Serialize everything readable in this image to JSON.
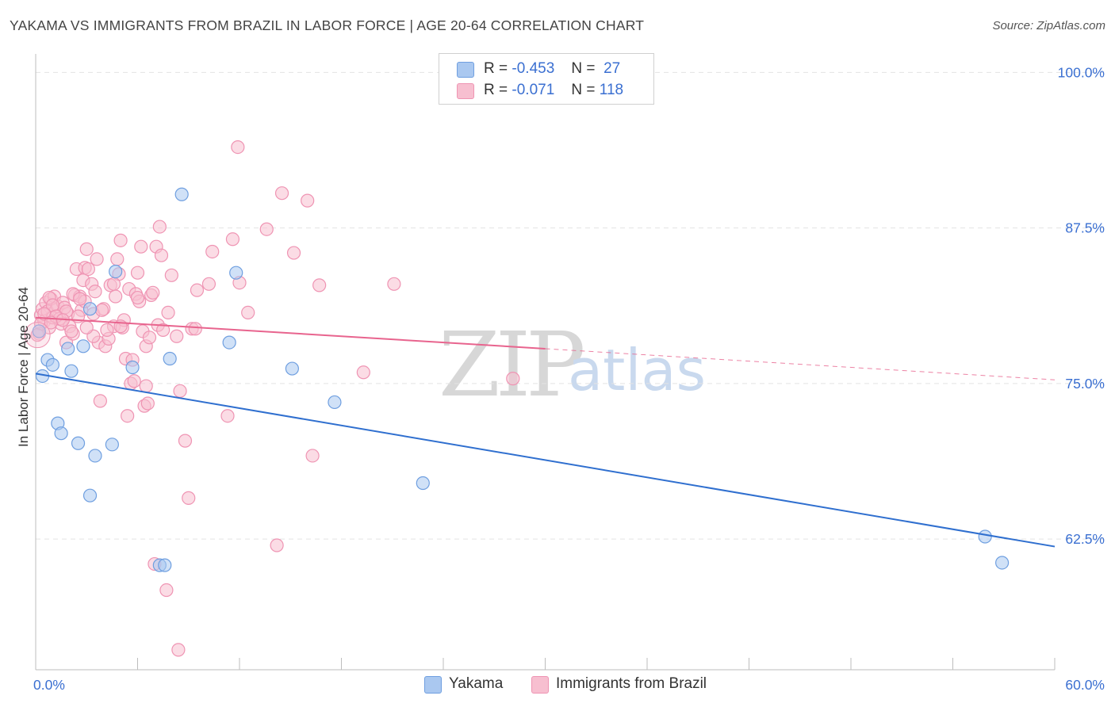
{
  "title": "YAKAMA VS IMMIGRANTS FROM BRAZIL IN LABOR FORCE | AGE 20-64 CORRELATION CHART",
  "source": "Source: ZipAtlas.com",
  "watermark": {
    "zip": "ZIP",
    "atlas": "atlas"
  },
  "legend": {
    "yakama": {
      "r_label": "R =",
      "r_value": "-0.453",
      "n_label": "N =",
      "n_value": "27"
    },
    "brazil": {
      "r_label": "R =",
      "r_value": "-0.071",
      "n_label": "N =",
      "n_value": "118"
    }
  },
  "colors": {
    "yakama_fill": "#aac8f0",
    "yakama_stroke": "#6f9fe0",
    "yakama_line": "#2f6fcf",
    "brazil_fill": "#f7bfd0",
    "brazil_stroke": "#ef94b3",
    "brazil_line": "#e8648e",
    "grid": "#e3e3e3",
    "tick_label": "#3a6fd1"
  },
  "chart_data": {
    "type": "scatter",
    "title": "YAKAMA VS IMMIGRANTS FROM BRAZIL IN LABOR FORCE | AGE 20-64 CORRELATION CHART",
    "xlabel": "",
    "ylabel": "In Labor Force | Age 20-64",
    "xlim": [
      0,
      60
    ],
    "ylim": [
      52,
      102
    ],
    "x_tick_labels": [
      {
        "value": 0,
        "label": "0.0%"
      },
      {
        "value": 60,
        "label": "60.0%"
      }
    ],
    "y_ticks": [
      {
        "value": 100,
        "label": "100.0%"
      },
      {
        "value": 87.5,
        "label": "87.5%"
      },
      {
        "value": 75,
        "label": "75.0%"
      },
      {
        "value": 62.5,
        "label": "62.5%"
      }
    ],
    "grid": true,
    "series": [
      {
        "name": "Yakama",
        "trend": {
          "x": [
            0,
            60
          ],
          "y": [
            75.8,
            61.9
          ],
          "dashed_from": null
        },
        "points": [
          [
            0.2,
            79.2
          ],
          [
            0.4,
            75.6
          ],
          [
            0.7,
            76.9
          ],
          [
            1.0,
            76.5
          ],
          [
            1.3,
            71.8
          ],
          [
            1.5,
            71.0
          ],
          [
            1.9,
            77.8
          ],
          [
            2.1,
            76.0
          ],
          [
            2.5,
            70.2
          ],
          [
            2.8,
            78.0
          ],
          [
            3.2,
            81.0
          ],
          [
            3.5,
            69.2
          ],
          [
            3.2,
            66.0
          ],
          [
            4.5,
            70.1
          ],
          [
            4.7,
            84.0
          ],
          [
            5.7,
            76.3
          ],
          [
            7.3,
            60.4
          ],
          [
            7.6,
            60.4
          ],
          [
            7.9,
            77.0
          ],
          [
            8.6,
            90.2
          ],
          [
            11.4,
            78.3
          ],
          [
            11.8,
            83.9
          ],
          [
            15.1,
            76.2
          ],
          [
            17.6,
            73.5
          ],
          [
            22.8,
            67.0
          ],
          [
            55.9,
            62.7
          ],
          [
            56.9,
            60.6
          ]
        ]
      },
      {
        "name": "Immigrants from Brazil",
        "trend": {
          "x": [
            0,
            60
          ],
          "y": [
            80.3,
            75.3
          ],
          "dashed_from": 30
        },
        "points": [
          [
            0.2,
            79.0
          ],
          [
            0.3,
            80.5
          ],
          [
            0.4,
            81.0
          ],
          [
            0.5,
            80.0
          ],
          [
            0.6,
            81.5
          ],
          [
            0.7,
            80.8
          ],
          [
            0.8,
            79.5
          ],
          [
            0.9,
            81.8
          ],
          [
            1.0,
            80.3
          ],
          [
            1.1,
            82.0
          ],
          [
            1.2,
            80.9
          ],
          [
            1.3,
            81.2
          ],
          [
            1.5,
            79.8
          ],
          [
            1.6,
            81.5
          ],
          [
            1.8,
            78.3
          ],
          [
            1.9,
            80.6
          ],
          [
            2.0,
            79.6
          ],
          [
            2.2,
            79.0
          ],
          [
            2.3,
            82.1
          ],
          [
            2.4,
            84.2
          ],
          [
            2.6,
            82.0
          ],
          [
            2.7,
            80.9
          ],
          [
            2.8,
            83.3
          ],
          [
            2.9,
            84.3
          ],
          [
            3.0,
            85.8
          ],
          [
            3.1,
            84.2
          ],
          [
            3.3,
            83.0
          ],
          [
            3.4,
            80.6
          ],
          [
            3.5,
            82.4
          ],
          [
            3.6,
            85.0
          ],
          [
            3.7,
            78.3
          ],
          [
            3.8,
            73.6
          ],
          [
            4.0,
            81.0
          ],
          [
            4.1,
            78.0
          ],
          [
            4.3,
            78.6
          ],
          [
            4.4,
            82.9
          ],
          [
            4.6,
            79.6
          ],
          [
            4.7,
            82.0
          ],
          [
            4.8,
            85.0
          ],
          [
            4.9,
            83.8
          ],
          [
            5.0,
            86.5
          ],
          [
            5.1,
            79.5
          ],
          [
            5.3,
            77.0
          ],
          [
            5.4,
            72.4
          ],
          [
            5.5,
            82.6
          ],
          [
            5.6,
            75.0
          ],
          [
            5.8,
            75.2
          ],
          [
            5.9,
            82.2
          ],
          [
            6.0,
            83.9
          ],
          [
            6.1,
            81.6
          ],
          [
            6.2,
            86.0
          ],
          [
            6.3,
            79.2
          ],
          [
            6.4,
            73.2
          ],
          [
            6.5,
            78.0
          ],
          [
            6.6,
            73.4
          ],
          [
            6.8,
            82.1
          ],
          [
            6.9,
            82.3
          ],
          [
            7.1,
            86.0
          ],
          [
            7.2,
            79.7
          ],
          [
            7.3,
            87.6
          ],
          [
            7.4,
            85.3
          ],
          [
            7.5,
            79.3
          ],
          [
            7.8,
            80.7
          ],
          [
            8.0,
            83.7
          ],
          [
            8.3,
            78.8
          ],
          [
            8.5,
            74.4
          ],
          [
            8.8,
            70.4
          ],
          [
            9.0,
            65.8
          ],
          [
            9.2,
            79.4
          ],
          [
            9.5,
            82.5
          ],
          [
            10.2,
            83.0
          ],
          [
            10.4,
            85.6
          ],
          [
            11.3,
            72.4
          ],
          [
            11.6,
            86.6
          ],
          [
            11.9,
            94.0
          ],
          [
            12.0,
            83.1
          ],
          [
            12.5,
            80.7
          ],
          [
            13.6,
            87.4
          ],
          [
            14.2,
            62.0
          ],
          [
            14.5,
            90.3
          ],
          [
            15.2,
            85.5
          ],
          [
            16.0,
            89.7
          ],
          [
            16.3,
            69.2
          ],
          [
            16.7,
            82.9
          ],
          [
            19.3,
            75.9
          ],
          [
            21.1,
            83.0
          ],
          [
            28.1,
            75.4
          ],
          [
            0.8,
            81.9
          ],
          [
            1.7,
            81.1
          ],
          [
            2.5,
            80.4
          ],
          [
            3.9,
            80.9
          ],
          [
            5.2,
            80.1
          ],
          [
            6.7,
            78.7
          ],
          [
            7.0,
            60.5
          ],
          [
            7.7,
            58.4
          ],
          [
            8.4,
            53.6
          ],
          [
            9.4,
            79.4
          ],
          [
            0.3,
            79.8
          ],
          [
            1.4,
            80.2
          ],
          [
            2.1,
            79.2
          ],
          [
            2.9,
            81.6
          ],
          [
            4.2,
            79.3
          ],
          [
            5.7,
            76.9
          ],
          [
            6.0,
            81.9
          ],
          [
            1.0,
            81.3
          ],
          [
            0.5,
            80.6
          ],
          [
            1.8,
            80.8
          ],
          [
            3.4,
            78.8
          ],
          [
            4.6,
            83.0
          ],
          [
            2.2,
            82.2
          ],
          [
            1.2,
            80.4
          ],
          [
            0.9,
            79.9
          ],
          [
            1.6,
            80.1
          ],
          [
            3.0,
            79.5
          ],
          [
            2.6,
            81.8
          ],
          [
            5.0,
            79.6
          ],
          [
            6.5,
            74.8
          ],
          [
            0.1,
            78.9
          ]
        ]
      }
    ]
  },
  "bottom_legend": [
    "Yakama",
    "Immigrants from Brazil"
  ]
}
